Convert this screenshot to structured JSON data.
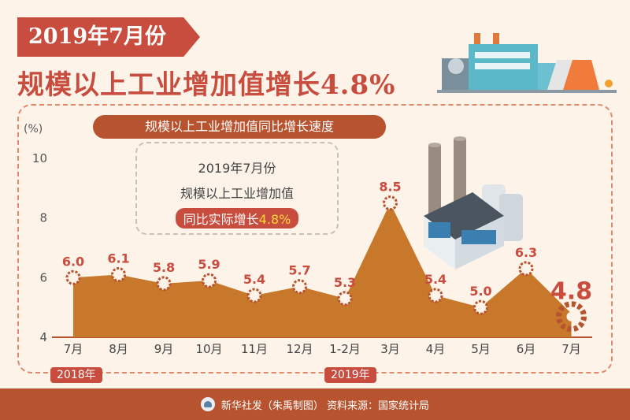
{
  "header": {
    "tag": "2019年7月份",
    "headline": "规模以上工业增加值增长4.8%"
  },
  "note": {
    "line1": "2019年7月份",
    "line2": "规模以上工业增加值",
    "line3_prefix": "同比实际增长",
    "line3_value": "4.8%"
  },
  "years": {
    "y2018": "2018年",
    "y2019": "2019年"
  },
  "footer": {
    "text": "新华社发（朱禹制图）  资料来源：国家统计局"
  },
  "colors": {
    "area": "#c8782a",
    "label": "#c84d3e",
    "accent": "#b8532f",
    "latest": "#c84d3e"
  },
  "chart_data": {
    "type": "area",
    "title": "规模以上工业增加值同比增长速度",
    "ylabel": "(%)",
    "ylim": [
      4,
      11
    ],
    "yticks": [
      4,
      6,
      8,
      10
    ],
    "categories": [
      "7月",
      "8月",
      "9月",
      "10月",
      "11月",
      "12月",
      "1-2月",
      "3月",
      "4月",
      "5月",
      "6月",
      "7月"
    ],
    "values": [
      6.0,
      6.1,
      5.8,
      5.9,
      5.4,
      5.7,
      5.3,
      8.5,
      5.4,
      5.0,
      6.3,
      4.8
    ],
    "labels": [
      "6.0",
      "6.1",
      "5.8",
      "5.9",
      "5.4",
      "5.7",
      "5.3",
      "8.5",
      "5.4",
      "5.0",
      "6.3",
      "4.8"
    ],
    "grid": false
  }
}
